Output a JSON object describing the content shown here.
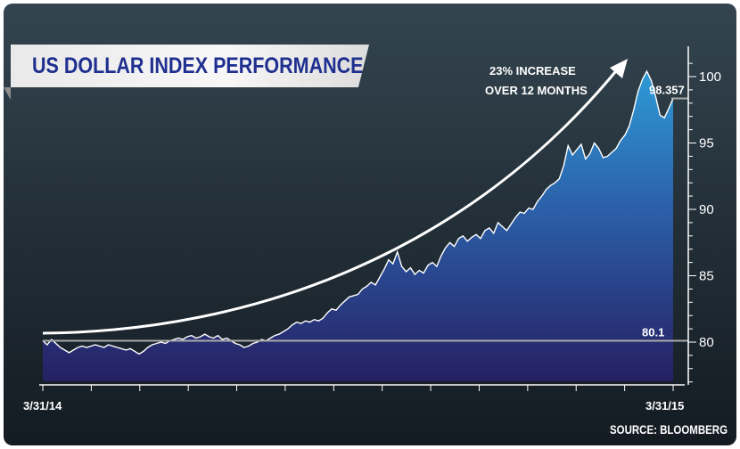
{
  "chart_data": {
    "type": "area",
    "title": "US DOLLAR INDEX PERFORMANCE",
    "source": "SOURCE: BLOOMBERG",
    "x_start_label": "3/31/14",
    "x_end_label": "3/31/15",
    "ylim": [
      77,
      101.5
    ],
    "y_ticks": [
      80,
      85,
      90,
      95,
      100
    ],
    "baseline": {
      "value": 80.1,
      "label": "80.1"
    },
    "end_value": {
      "value": 98.357,
      "label": "98.357"
    },
    "annotation": {
      "line1": "23% INCREASE",
      "line2": "OVER 12 MONTHS"
    },
    "colors": {
      "area_top": "#2f9ad6",
      "area_bottom": "#261f63",
      "line": "#ffffff",
      "baseline": "#a9a9a9",
      "title": "#1f2f8f"
    },
    "grid": false,
    "series": [
      {
        "values": [
          80.1,
          79.8,
          80.2,
          79.9,
          79.6,
          79.4,
          79.2,
          79.4,
          79.6,
          79.7,
          79.6,
          79.7,
          79.8,
          79.7,
          79.6,
          79.8,
          79.7,
          79.6,
          79.5,
          79.4,
          79.5,
          79.3,
          79.1,
          79.3,
          79.6,
          79.8,
          79.9,
          80.0,
          79.9,
          80.1,
          80.2,
          80.3,
          80.2,
          80.4,
          80.5,
          80.3,
          80.4,
          80.6,
          80.4,
          80.3,
          80.5,
          80.2,
          80.3,
          80.1,
          79.9,
          79.8,
          79.6,
          79.7,
          79.9,
          80.0,
          80.2,
          80.1,
          80.3,
          80.5,
          80.6,
          80.8,
          81.0,
          81.3,
          81.5,
          81.4,
          81.6,
          81.5,
          81.7,
          81.6,
          81.8,
          82.2,
          82.5,
          82.4,
          82.8,
          83.1,
          83.4,
          83.5,
          83.6,
          84.0,
          84.2,
          84.5,
          84.3,
          84.9,
          85.5,
          86.2,
          85.9,
          86.8,
          85.7,
          85.3,
          85.6,
          85.1,
          85.4,
          85.2,
          85.8,
          86.0,
          85.7,
          86.5,
          87.1,
          87.5,
          87.2,
          87.8,
          88.0,
          87.6,
          87.9,
          88.1,
          87.8,
          88.4,
          88.6,
          88.2,
          89.0,
          88.7,
          88.4,
          88.9,
          89.4,
          89.8,
          89.7,
          90.1,
          90.0,
          90.6,
          91.0,
          91.5,
          91.8,
          92.0,
          92.3,
          93.3,
          94.8,
          94.1,
          94.5,
          94.9,
          93.8,
          94.2,
          95.0,
          94.6,
          93.9,
          94.0,
          94.3,
          94.6,
          95.2,
          95.6,
          96.3,
          97.5,
          98.9,
          99.8,
          100.4,
          99.7,
          98.5,
          97.1,
          96.9,
          97.6,
          98.357
        ]
      }
    ]
  }
}
